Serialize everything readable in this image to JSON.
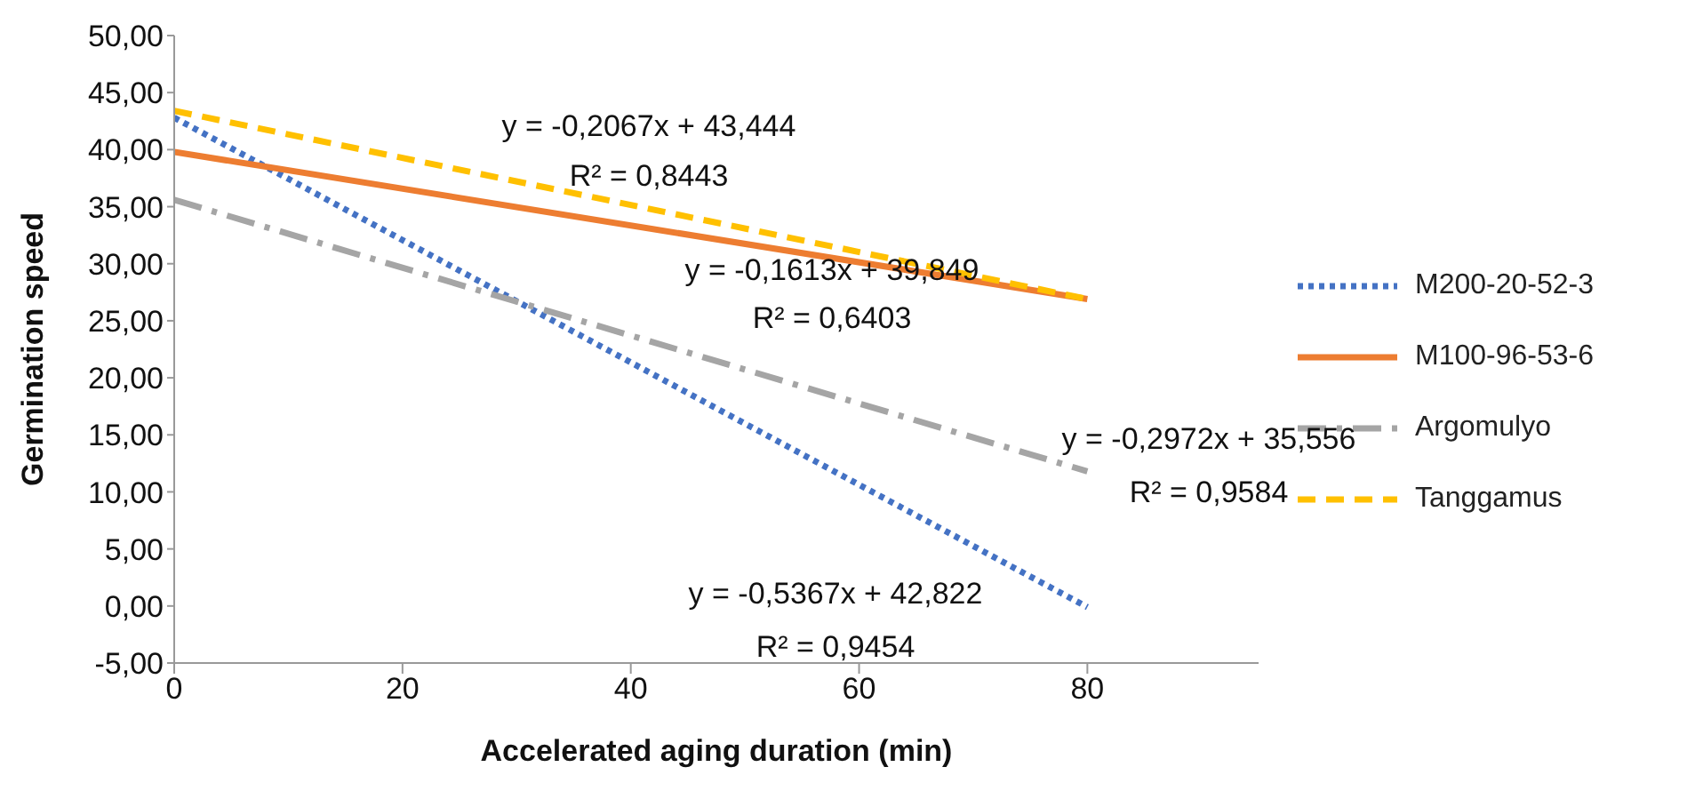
{
  "chart_data": {
    "type": "line",
    "xlabel": "Accelerated aging duration (min)",
    "ylabel": "Germination speed",
    "x": [
      0,
      80
    ],
    "series": [
      {
        "name": "M200-20-52-3",
        "color": "#4472c4",
        "line_style": "dotted",
        "values": [
          42.8,
          -0.1
        ]
      },
      {
        "name": "M100-96-53-6",
        "color": "#ed7d31",
        "line_style": "solid",
        "values": [
          39.8,
          26.9
        ]
      },
      {
        "name": "Argomulyo",
        "color": "#a5a5a5",
        "line_style": "dashdot",
        "values": [
          35.6,
          11.8
        ]
      },
      {
        "name": "Tanggamus",
        "color": "#ffc000",
        "line_style": "dashed",
        "values": [
          43.4,
          26.9
        ]
      }
    ],
    "xlim": [
      0,
      95
    ],
    "xticks": [
      0,
      20,
      40,
      60,
      80
    ],
    "ylim": [
      -5,
      50
    ],
    "yticks": [
      {
        "value": -5,
        "label": "-5,00"
      },
      {
        "value": 0,
        "label": "0,00"
      },
      {
        "value": 5,
        "label": "5,00"
      },
      {
        "value": 10,
        "label": "10,00"
      },
      {
        "value": 15,
        "label": "15,00"
      },
      {
        "value": 20,
        "label": "20,00"
      },
      {
        "value": 25,
        "label": "25,00"
      },
      {
        "value": 30,
        "label": "30,00"
      },
      {
        "value": 35,
        "label": "35,00"
      },
      {
        "value": 40,
        "label": "40,00"
      },
      {
        "value": 45,
        "label": "45,00"
      },
      {
        "value": 50,
        "label": "50,00"
      }
    ],
    "grid": false,
    "legend": "right",
    "marker": "none",
    "annotations": [
      "y = -0,2067x + 43,444",
      "R² = 0,8443",
      "y = -0,1613x + 39,849",
      "R² = 0,6403",
      "y = -0,2972x + 35,556",
      "R² = 0,9584",
      "y = -0,5367x + 42,822",
      "R² = 0,9454"
    ]
  }
}
